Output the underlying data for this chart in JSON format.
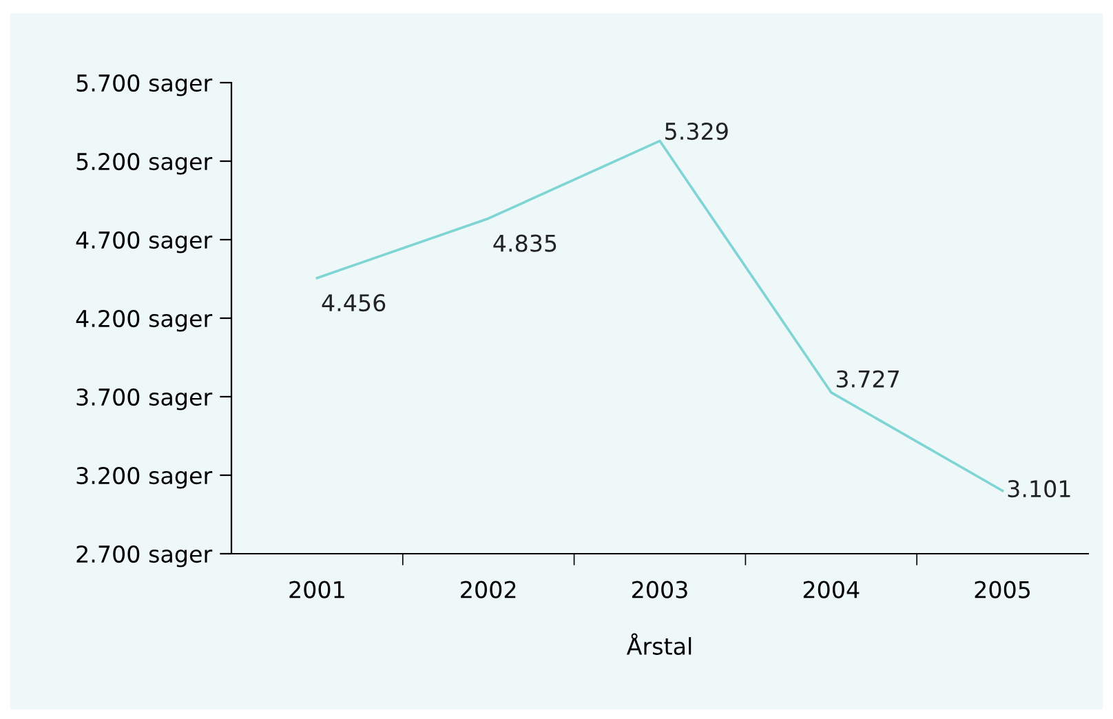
{
  "chart_data": {
    "type": "line",
    "xlabel": "Årstal",
    "categories": [
      "2001",
      "2002",
      "2003",
      "2004",
      "2005"
    ],
    "series": [
      {
        "color": "#7fd4d4",
        "values": [
          4456,
          4835,
          5329,
          3727,
          3101
        ],
        "value_labels": [
          "4.456",
          "4.835",
          "5.329",
          "3.727",
          "3.101"
        ]
      }
    ],
    "ylim": [
      2700,
      5700
    ],
    "yticks": [
      {
        "value": 2700,
        "label": "2.700 sager"
      },
      {
        "value": 3200,
        "label": "3.200 sager"
      },
      {
        "value": 3700,
        "label": "3.700 sager"
      },
      {
        "value": 4200,
        "label": "4.200 sager"
      },
      {
        "value": 4700,
        "label": "4.700 sager"
      },
      {
        "value": 5200,
        "label": "5.200 sager"
      },
      {
        "value": 5700,
        "label": "5.700 sager"
      }
    ],
    "grid": false,
    "legend": false,
    "marker": "none",
    "line_style": "solid"
  }
}
